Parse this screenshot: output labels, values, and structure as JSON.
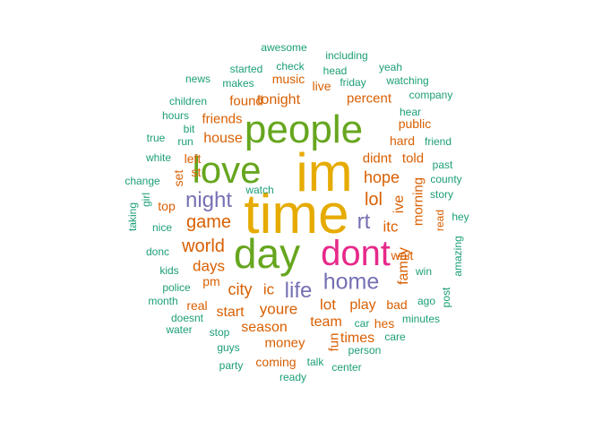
{
  "colors": {
    "teal": "#1b9e77",
    "orange": "#d95f02",
    "purple": "#7570b3",
    "magenta": "#e7298a",
    "green": "#66a61e",
    "gold": "#e6ab02"
  },
  "words": [
    {
      "text": "im",
      "color": "gold"
    },
    {
      "text": "time",
      "color": "gold"
    },
    {
      "text": "people",
      "color": "green"
    },
    {
      "text": "love",
      "color": "green"
    },
    {
      "text": "day",
      "color": "green"
    },
    {
      "text": "dont",
      "color": "magenta"
    },
    {
      "text": "home",
      "color": "purple"
    },
    {
      "text": "life",
      "color": "purple"
    },
    {
      "text": "night",
      "color": "purple"
    },
    {
      "text": "rt",
      "color": "purple"
    },
    {
      "text": "game",
      "color": "orange"
    },
    {
      "text": "world",
      "color": "orange"
    },
    {
      "text": "lol",
      "color": "orange"
    },
    {
      "text": "hope",
      "color": "orange"
    },
    {
      "text": "itc",
      "color": "orange"
    },
    {
      "text": "days",
      "color": "orange"
    },
    {
      "text": "city",
      "color": "orange"
    },
    {
      "text": "ic",
      "color": "orange"
    },
    {
      "text": "lot",
      "color": "orange"
    },
    {
      "text": "play",
      "color": "orange"
    },
    {
      "text": "youre",
      "color": "orange"
    },
    {
      "text": "team",
      "color": "orange"
    },
    {
      "text": "season",
      "color": "orange"
    },
    {
      "text": "money",
      "color": "orange"
    },
    {
      "text": "start",
      "color": "orange"
    },
    {
      "text": "house",
      "color": "orange"
    },
    {
      "text": "tonight",
      "color": "orange"
    },
    {
      "text": "found",
      "color": "orange"
    },
    {
      "text": "friends",
      "color": "orange"
    },
    {
      "text": "percent",
      "color": "orange"
    },
    {
      "text": "didnt",
      "color": "orange"
    },
    {
      "text": "told",
      "color": "orange"
    },
    {
      "text": "hard",
      "color": "orange"
    },
    {
      "text": "public",
      "color": "orange"
    },
    {
      "text": "ive",
      "color": "orange"
    },
    {
      "text": "morning",
      "color": "orange"
    },
    {
      "text": "family",
      "color": "orange"
    },
    {
      "text": "wait",
      "color": "orange"
    },
    {
      "text": "bad",
      "color": "orange"
    },
    {
      "text": "times",
      "color": "orange"
    },
    {
      "text": "fun",
      "color": "orange"
    },
    {
      "text": "hes",
      "color": "orange"
    },
    {
      "text": "coming",
      "color": "orange"
    },
    {
      "text": "real",
      "color": "orange"
    },
    {
      "text": "pm",
      "color": "orange"
    },
    {
      "text": "left",
      "color": "orange"
    },
    {
      "text": "st",
      "color": "orange"
    },
    {
      "text": "set",
      "color": "orange"
    },
    {
      "text": "top",
      "color": "orange"
    },
    {
      "text": "music",
      "color": "orange"
    },
    {
      "text": "live",
      "color": "orange"
    },
    {
      "text": "read",
      "color": "orange"
    },
    {
      "text": "awesome",
      "color": "teal"
    },
    {
      "text": "including",
      "color": "teal"
    },
    {
      "text": "check",
      "color": "teal"
    },
    {
      "text": "head",
      "color": "teal"
    },
    {
      "text": "yeah",
      "color": "teal"
    },
    {
      "text": "started",
      "color": "teal"
    },
    {
      "text": "news",
      "color": "teal"
    },
    {
      "text": "makes",
      "color": "teal"
    },
    {
      "text": "friday",
      "color": "teal"
    },
    {
      "text": "watching",
      "color": "teal"
    },
    {
      "text": "company",
      "color": "teal"
    },
    {
      "text": "children",
      "color": "teal"
    },
    {
      "text": "hear",
      "color": "teal"
    },
    {
      "text": "hours",
      "color": "teal"
    },
    {
      "text": "bit",
      "color": "teal"
    },
    {
      "text": "true",
      "color": "teal"
    },
    {
      "text": "run",
      "color": "teal"
    },
    {
      "text": "friend",
      "color": "teal"
    },
    {
      "text": "white",
      "color": "teal"
    },
    {
      "text": "past",
      "color": "teal"
    },
    {
      "text": "change",
      "color": "teal"
    },
    {
      "text": "county",
      "color": "teal"
    },
    {
      "text": "watch",
      "color": "teal"
    },
    {
      "text": "story",
      "color": "teal"
    },
    {
      "text": "girl",
      "color": "teal"
    },
    {
      "text": "taking",
      "color": "teal"
    },
    {
      "text": "hey",
      "color": "teal"
    },
    {
      "text": "nice",
      "color": "teal"
    },
    {
      "text": "amazing",
      "color": "teal"
    },
    {
      "text": "donc",
      "color": "teal"
    },
    {
      "text": "kids",
      "color": "teal"
    },
    {
      "text": "win",
      "color": "teal"
    },
    {
      "text": "police",
      "color": "teal"
    },
    {
      "text": "post",
      "color": "teal"
    },
    {
      "text": "month",
      "color": "teal"
    },
    {
      "text": "ago",
      "color": "teal"
    },
    {
      "text": "doesnt",
      "color": "teal"
    },
    {
      "text": "minutes",
      "color": "teal"
    },
    {
      "text": "water",
      "color": "teal"
    },
    {
      "text": "car",
      "color": "teal"
    },
    {
      "text": "stop",
      "color": "teal"
    },
    {
      "text": "care",
      "color": "teal"
    },
    {
      "text": "guys",
      "color": "teal"
    },
    {
      "text": "person",
      "color": "teal"
    },
    {
      "text": "party",
      "color": "teal"
    },
    {
      "text": "talk",
      "color": "teal"
    },
    {
      "text": "center",
      "color": "teal"
    },
    {
      "text": "ready",
      "color": "teal"
    }
  ]
}
